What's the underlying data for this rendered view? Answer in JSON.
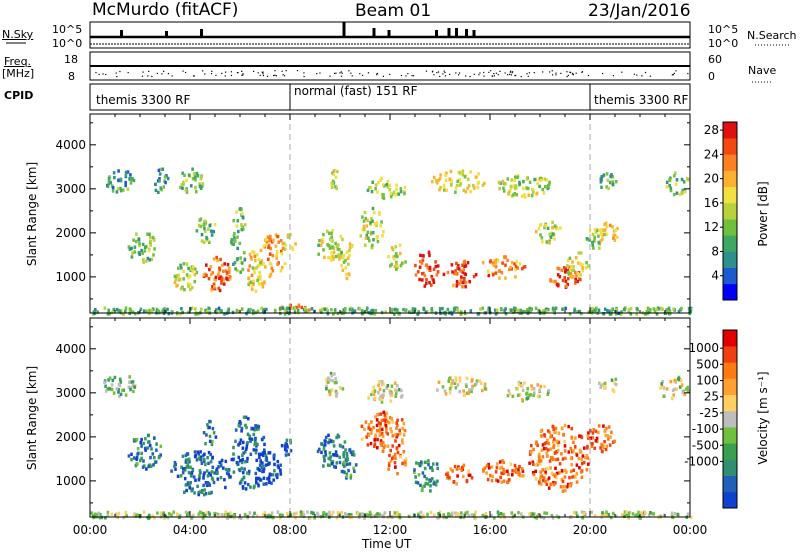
{
  "header": {
    "title": "McMurdo (fitACF)",
    "beam": "Beam 01",
    "date": "23/Jan/2016"
  },
  "top_panels": {
    "nsky_label": "N.Sky",
    "nsearch_label": "N.Search",
    "nsky_ticks": [
      "10^5",
      "10^0"
    ],
    "nsearch_ticks": [
      "10^5",
      "10^0"
    ],
    "freq_label": "Freq.",
    "freq_unit": "[MHz]",
    "freq_ticks": [
      "18",
      "8"
    ],
    "nave_ticks": [
      "60",
      "0"
    ],
    "nave_label": "Nave",
    "cpid_label": "CPID",
    "cpid_segments": [
      {
        "label": "themis 3300 RF",
        "start_h": 0,
        "end_h": 8
      },
      {
        "label": "normal (fast) 151 RF",
        "start_h": 8,
        "end_h": 20
      },
      {
        "label": "themis 3300 RF",
        "start_h": 20,
        "end_h": 24
      }
    ]
  },
  "chart_data": [
    {
      "type": "heatmap",
      "name": "power",
      "xlabel": "",
      "ylabel": "Slant Range [km]",
      "xlim": [
        0,
        24
      ],
      "ylim": [
        180,
        4700
      ],
      "yticks": [
        1000,
        2000,
        3000,
        4000
      ],
      "colorbar_label": "Power [dB]",
      "colorbar_ticks": [
        "4",
        "8",
        "12",
        "16",
        "20",
        "24",
        "28"
      ],
      "colorbar_colors": [
        "#0000ff",
        "#1c5ad0",
        "#2f8f8c",
        "#3ea860",
        "#70c040",
        "#b8d23c",
        "#f0e040",
        "#ffb030",
        "#ff8020",
        "#f04a10",
        "#e01010"
      ],
      "regions": [
        {
          "t0": 0.6,
          "t1": 1.8,
          "r0": 2950,
          "r1": 3450,
          "level": 0.3
        },
        {
          "t0": 2.5,
          "t1": 3.1,
          "r0": 2900,
          "r1": 3500,
          "level": 0.3
        },
        {
          "t0": 3.5,
          "t1": 4.5,
          "r0": 2950,
          "r1": 3500,
          "level": 0.4
        },
        {
          "t0": 1.5,
          "t1": 2.6,
          "r0": 1350,
          "r1": 2050,
          "level": 0.4
        },
        {
          "t0": 3.3,
          "t1": 4.3,
          "r0": 700,
          "r1": 1350,
          "level": 0.5
        },
        {
          "t0": 4.5,
          "t1": 5.6,
          "r0": 700,
          "r1": 1500,
          "level": 0.85
        },
        {
          "t0": 4.2,
          "t1": 5.0,
          "r0": 1800,
          "r1": 2400,
          "level": 0.4
        },
        {
          "t0": 5.6,
          "t1": 6.2,
          "r0": 1100,
          "r1": 2600,
          "level": 0.4
        },
        {
          "t0": 6.2,
          "t1": 7.0,
          "r0": 700,
          "r1": 1700,
          "level": 0.6
        },
        {
          "t0": 6.8,
          "t1": 7.8,
          "r0": 1000,
          "r1": 2000,
          "level": 0.7
        },
        {
          "t0": 7.7,
          "t1": 8.2,
          "r0": 1600,
          "r1": 2000,
          "level": 0.55
        },
        {
          "t0": 7.5,
          "t1": 8.8,
          "r0": 200,
          "r1": 400,
          "level": 0.7
        },
        {
          "t0": 9.0,
          "t1": 10.2,
          "r0": 1400,
          "r1": 2100,
          "level": 0.5
        },
        {
          "t0": 10.0,
          "t1": 10.5,
          "r0": 1000,
          "r1": 1900,
          "level": 0.55
        },
        {
          "t0": 9.6,
          "t1": 10.0,
          "r0": 2950,
          "r1": 3500,
          "level": 0.5
        },
        {
          "t0": 10.7,
          "t1": 11.7,
          "r0": 1700,
          "r1": 2600,
          "level": 0.5
        },
        {
          "t0": 11.0,
          "t1": 12.6,
          "r0": 2800,
          "r1": 3300,
          "level": 0.45
        },
        {
          "t0": 11.8,
          "t1": 12.6,
          "r0": 1200,
          "r1": 1800,
          "level": 0.5
        },
        {
          "t0": 12.9,
          "t1": 13.9,
          "r0": 800,
          "r1": 1600,
          "level": 0.9
        },
        {
          "t0": 13.6,
          "t1": 15.8,
          "r0": 2950,
          "r1": 3450,
          "level": 0.55
        },
        {
          "t0": 14.1,
          "t1": 15.4,
          "r0": 800,
          "r1": 1400,
          "level": 0.9
        },
        {
          "t0": 15.6,
          "t1": 17.4,
          "r0": 1000,
          "r1": 1500,
          "level": 0.75
        },
        {
          "t0": 16.2,
          "t1": 18.4,
          "r0": 2850,
          "r1": 3350,
          "level": 0.5
        },
        {
          "t0": 17.7,
          "t1": 18.8,
          "r0": 1800,
          "r1": 2300,
          "level": 0.5
        },
        {
          "t0": 18.3,
          "t1": 19.6,
          "r0": 800,
          "r1": 1300,
          "level": 0.9
        },
        {
          "t0": 19.0,
          "t1": 19.9,
          "r0": 1000,
          "r1": 1600,
          "level": 0.55
        },
        {
          "t0": 19.8,
          "t1": 20.6,
          "r0": 1650,
          "r1": 2200,
          "level": 0.45
        },
        {
          "t0": 20.3,
          "t1": 21.1,
          "r0": 1750,
          "r1": 2300,
          "level": 0.65
        },
        {
          "t0": 20.3,
          "t1": 21.1,
          "r0": 3000,
          "r1": 3400,
          "level": 0.35
        },
        {
          "t0": 23.0,
          "t1": 23.9,
          "r0": 2900,
          "r1": 3400,
          "level": 0.4
        },
        {
          "t0": 0.0,
          "t1": 24.0,
          "r0": 190,
          "r1": 330,
          "level": 0.35
        }
      ]
    },
    {
      "type": "heatmap",
      "name": "velocity",
      "xlabel": "Time UT",
      "ylabel": "Slant Range [km]",
      "xlim": [
        0,
        24
      ],
      "ylim": [
        180,
        4700
      ],
      "yticks": [
        1000,
        2000,
        3000,
        4000
      ],
      "xticks": [
        "00:00",
        "04:00",
        "08:00",
        "12:00",
        "16:00",
        "20:00",
        "00:00"
      ],
      "colorbar_label": "Velocity [m s⁻¹]",
      "colorbar_ticks": [
        "1000",
        "500",
        "100",
        "25",
        "-25",
        "-100",
        "-500",
        "-1000"
      ],
      "colorbar_colors": [
        "#1040d0",
        "#2060b8",
        "#2f8f70",
        "#3aa050",
        "#70c040",
        "#bdbdbd",
        "#ffd060",
        "#ffa030",
        "#ff7a10",
        "#f04010",
        "#e00000"
      ],
      "regions": [
        {
          "t0": 0.5,
          "t1": 1.8,
          "r0": 2950,
          "r1": 3450,
          "level": 0.4
        },
        {
          "t0": 1.5,
          "t1": 2.8,
          "r0": 1300,
          "r1": 2100,
          "level": 0.2
        },
        {
          "t0": 3.2,
          "t1": 5.6,
          "r0": 700,
          "r1": 1700,
          "level": 0.15
        },
        {
          "t0": 4.5,
          "t1": 5.0,
          "r0": 1800,
          "r1": 2400,
          "level": 0.2
        },
        {
          "t0": 5.6,
          "t1": 7.0,
          "r0": 800,
          "r1": 2500,
          "level": 0.15
        },
        {
          "t0": 6.5,
          "t1": 7.6,
          "r0": 900,
          "r1": 1700,
          "level": 0.05
        },
        {
          "t0": 7.6,
          "t1": 8.2,
          "r0": 1600,
          "r1": 2000,
          "level": 0.2
        },
        {
          "t0": 9.0,
          "t1": 10.3,
          "r0": 1300,
          "r1": 2100,
          "level": 0.2
        },
        {
          "t0": 10.0,
          "t1": 10.6,
          "r0": 1000,
          "r1": 1800,
          "level": 0.25
        },
        {
          "t0": 9.3,
          "t1": 10.1,
          "r0": 2900,
          "r1": 3500,
          "level": 0.5
        },
        {
          "t0": 10.8,
          "t1": 12.6,
          "r0": 1700,
          "r1": 2600,
          "level": 0.8
        },
        {
          "t0": 11.0,
          "t1": 12.5,
          "r0": 2800,
          "r1": 3300,
          "level": 0.5
        },
        {
          "t0": 11.8,
          "t1": 12.6,
          "r0": 1200,
          "r1": 1800,
          "level": 0.75
        },
        {
          "t0": 12.9,
          "t1": 13.9,
          "r0": 800,
          "r1": 1600,
          "level": 0.25
        },
        {
          "t0": 13.8,
          "t1": 15.8,
          "r0": 2950,
          "r1": 3400,
          "level": 0.55
        },
        {
          "t0": 14.2,
          "t1": 15.3,
          "r0": 900,
          "r1": 1400,
          "level": 0.8
        },
        {
          "t0": 15.6,
          "t1": 17.4,
          "r0": 1000,
          "r1": 1500,
          "level": 0.8
        },
        {
          "t0": 16.4,
          "t1": 18.3,
          "r0": 2850,
          "r1": 3300,
          "level": 0.5
        },
        {
          "t0": 17.5,
          "t1": 19.9,
          "r0": 800,
          "r1": 2300,
          "level": 0.8
        },
        {
          "t0": 19.8,
          "t1": 21.0,
          "r0": 1700,
          "r1": 2300,
          "level": 0.8
        },
        {
          "t0": 20.3,
          "t1": 21.1,
          "r0": 3000,
          "r1": 3400,
          "level": 0.5
        },
        {
          "t0": 22.7,
          "t1": 23.9,
          "r0": 2900,
          "r1": 3400,
          "level": 0.5
        },
        {
          "t0": 0.0,
          "t1": 24.0,
          "r0": 190,
          "r1": 330,
          "level": 0.45
        }
      ]
    }
  ]
}
